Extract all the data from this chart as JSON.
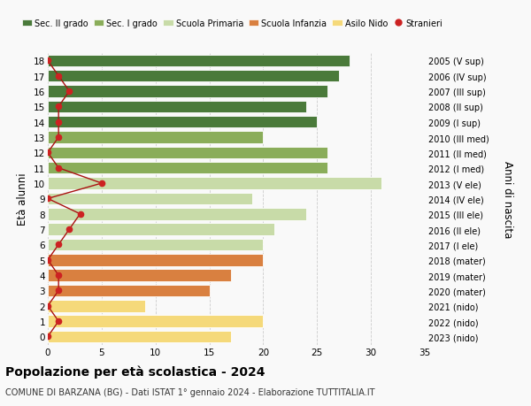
{
  "ages": [
    0,
    1,
    2,
    3,
    4,
    5,
    6,
    7,
    8,
    9,
    10,
    11,
    12,
    13,
    14,
    15,
    16,
    17,
    18
  ],
  "bar_values": [
    17,
    20,
    9,
    15,
    17,
    20,
    20,
    21,
    24,
    19,
    31,
    26,
    26,
    20,
    25,
    24,
    26,
    27,
    28
  ],
  "bar_colors": [
    "#f5d97a",
    "#f5d97a",
    "#f5d97a",
    "#d98040",
    "#d98040",
    "#d98040",
    "#c8dba8",
    "#c8dba8",
    "#c8dba8",
    "#c8dba8",
    "#c8dba8",
    "#8aad5a",
    "#8aad5a",
    "#8aad5a",
    "#4a7a3a",
    "#4a7a3a",
    "#4a7a3a",
    "#4a7a3a",
    "#4a7a3a"
  ],
  "right_labels": [
    "2023 (nido)",
    "2022 (nido)",
    "2021 (nido)",
    "2020 (mater)",
    "2019 (mater)",
    "2018 (mater)",
    "2017 (I ele)",
    "2016 (II ele)",
    "2015 (III ele)",
    "2014 (IV ele)",
    "2013 (V ele)",
    "2012 (I med)",
    "2011 (II med)",
    "2010 (III med)",
    "2009 (I sup)",
    "2008 (II sup)",
    "2007 (III sup)",
    "2006 (IV sup)",
    "2005 (V sup)"
  ],
  "stranieri_values": [
    0,
    1,
    0,
    1,
    1,
    0,
    1,
    2,
    3,
    0,
    5,
    1,
    0,
    1,
    1,
    1,
    2,
    1,
    0
  ],
  "legend_labels": [
    "Sec. II grado",
    "Sec. I grado",
    "Scuola Primaria",
    "Scuola Infanzia",
    "Asilo Nido",
    "Stranieri"
  ],
  "legend_colors": [
    "#4a7a3a",
    "#8aad5a",
    "#c8dba8",
    "#d98040",
    "#f5d97a",
    "#cc2222"
  ],
  "ylabel": "Età alunni",
  "ylabel_right": "Anni di nascita",
  "xlim": [
    0,
    35
  ],
  "title": "Popolazione per età scolastica - 2024",
  "subtitle": "COMUNE DI BARZANA (BG) - Dati ISTAT 1° gennaio 2024 - Elaborazione TUTTITALIA.IT",
  "background_color": "#f9f9f9",
  "grid_color": "#cccccc"
}
